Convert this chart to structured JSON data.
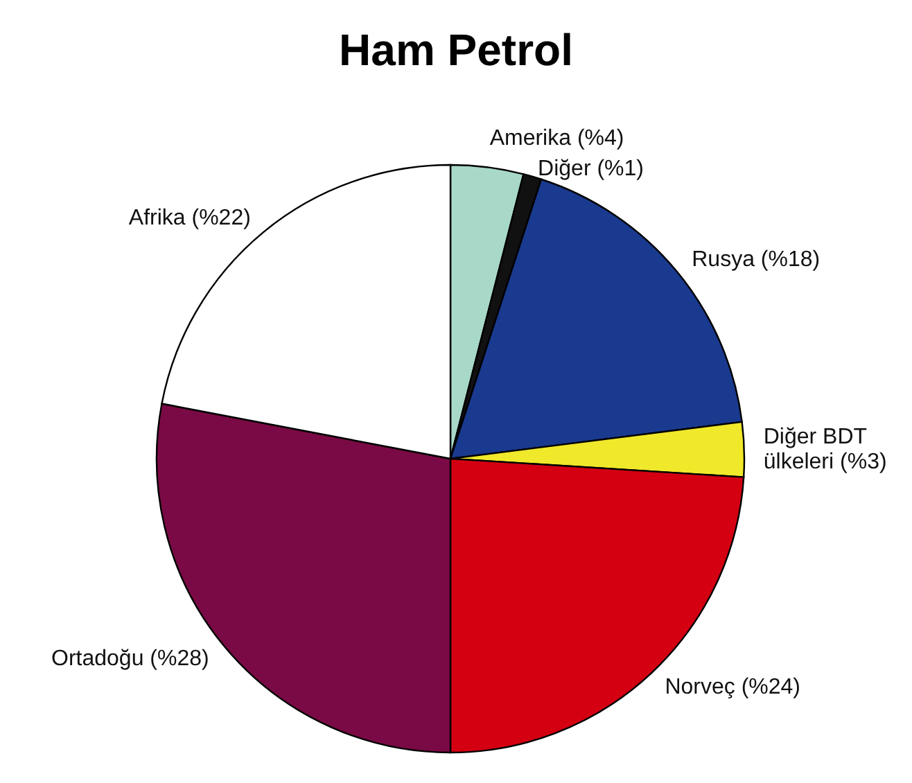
{
  "chart_data": {
    "type": "pie",
    "title": "Ham Petrol",
    "categories": [
      "Amerika (%4)",
      "Diğer (%1)",
      "Rusya (%18)",
      "Diğer BDT ülkeleri (%3)",
      "Norveç (%24)",
      "Ortadoğu (%28)",
      "Afrika (%22)"
    ],
    "values": [
      4,
      1,
      18,
      3,
      24,
      28,
      22
    ],
    "colors": [
      "#a8d8c8",
      "#111111",
      "#1a3a8f",
      "#f0e82a",
      "#d40012",
      "#7a0a45",
      "#ffffff"
    ]
  }
}
